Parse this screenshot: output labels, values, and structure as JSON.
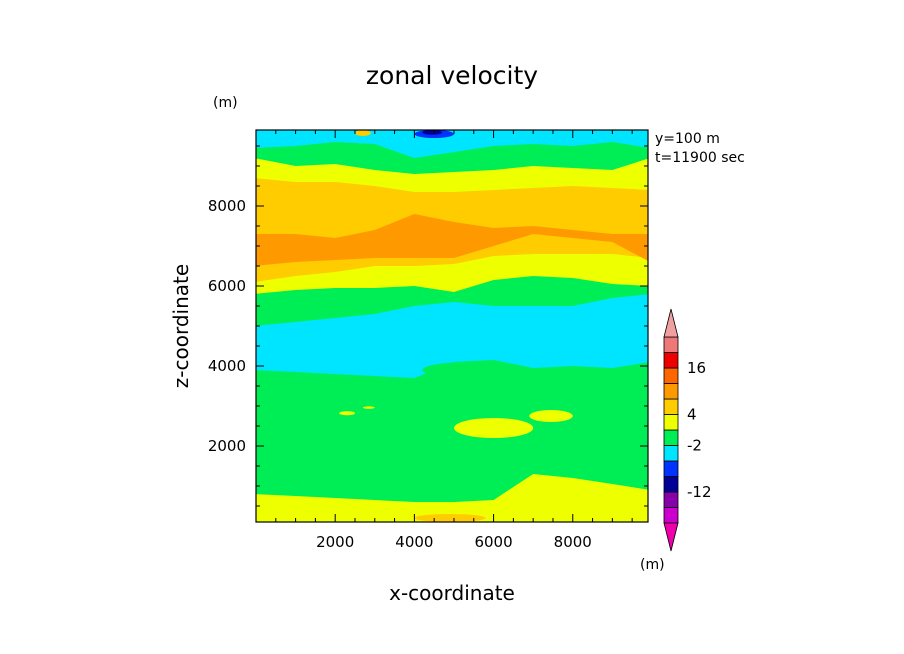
{
  "chart_data": {
    "type": "heatmap",
    "title": "zonal velocity",
    "xlabel": "x-coordinate",
    "ylabel": "z-coordinate",
    "y_unit": "(m)",
    "colorbar_unit": "(m)",
    "annotations": [
      "y=100 m",
      "t=11900 sec"
    ],
    "xlim": [
      0,
      9900
    ],
    "ylim": [
      100,
      9900
    ],
    "x_ticks": [
      2000,
      4000,
      6000,
      8000
    ],
    "y_ticks": [
      2000,
      4000,
      6000,
      8000
    ],
    "x_tick_labels": [
      "2000",
      "4000",
      "6000",
      "8000"
    ],
    "y_tick_labels": [
      "2000",
      "4000",
      "6000",
      "8000"
    ],
    "colorbar": {
      "bins": [
        {
          "color": "#cc00cc"
        },
        {
          "color": "#8800aa"
        },
        {
          "color": "#000099"
        },
        {
          "color": "#0033ff"
        },
        {
          "color": "#00e5ff"
        },
        {
          "color": "#00ee55"
        },
        {
          "color": "#eeff00"
        },
        {
          "color": "#ffcc00"
        },
        {
          "color": "#ff9900"
        },
        {
          "color": "#ff6600"
        },
        {
          "color": "#ee0000"
        },
        {
          "color": "#ee7777"
        }
      ],
      "bottom_arrow_color": "#ee00aa",
      "top_arrow_color": "#f0a0a0",
      "labels": [
        {
          "text": "16",
          "after_bin": 10
        },
        {
          "text": "4",
          "after_bin": 7
        },
        {
          "text": "-2",
          "after_bin": 5
        },
        {
          "text": "-12",
          "after_bin": 2
        }
      ]
    },
    "field": {
      "note": "contour bands from bottom (z=100) to top (z=9900); boundaries are z-values in m sampled at x",
      "x_samples": [
        0,
        1000,
        2000,
        3000,
        4000,
        5000,
        6000,
        7000,
        8000,
        9000,
        9900
      ],
      "layers": [
        {
          "color": "#eeff00",
          "from": "bottom"
        },
        {
          "color": "#00ee55",
          "lower": [
            800,
            750,
            700,
            650,
            600,
            600,
            650,
            1300,
            1200,
            1050,
            900
          ]
        },
        {
          "color": "#00e5ff",
          "lower": [
            3900,
            3850,
            3800,
            3750,
            3700,
            4100,
            4150,
            3950,
            4000,
            3950,
            4100
          ]
        },
        {
          "color": "#00ee55",
          "lower": [
            5000,
            5100,
            5200,
            5300,
            5500,
            5600,
            5500,
            5500,
            5500,
            5700,
            5800
          ]
        },
        {
          "color": "#eeff00",
          "lower": [
            5800,
            5900,
            5950,
            5950,
            6000,
            5850,
            6150,
            6250,
            6200,
            6050,
            6000
          ]
        },
        {
          "color": "#ffcc00",
          "lower": [
            6100,
            6250,
            6350,
            6500,
            6500,
            6550,
            6750,
            6800,
            6800,
            6800,
            6700
          ]
        },
        {
          "color": "#ff9900",
          "lower": [
            6500,
            6600,
            6650,
            6700,
            6700,
            6700,
            7000,
            7300,
            7200,
            7100,
            6600
          ]
        },
        {
          "color": "#ffcc00",
          "lower": [
            7300,
            7300,
            7200,
            7400,
            7800,
            7600,
            7450,
            7500,
            7400,
            7300,
            7300
          ]
        },
        {
          "color": "#eeff00",
          "lower": [
            8700,
            8600,
            8600,
            8500,
            8350,
            8350,
            8400,
            8450,
            8500,
            8450,
            8400
          ]
        },
        {
          "color": "#00ee55",
          "lower": [
            9200,
            9000,
            9050,
            8900,
            8800,
            8850,
            8900,
            9000,
            8950,
            8900,
            9200
          ]
        },
        {
          "color": "#00e5ff",
          "lower": [
            9450,
            9500,
            9600,
            9550,
            9200,
            9350,
            9500,
            9550,
            9500,
            9600,
            9450
          ]
        }
      ],
      "patches": [
        {
          "color": "#00ee55",
          "x": [
            2200,
            3000
          ],
          "z": [
            2500,
            3000
          ]
        },
        {
          "color": "#eeff00",
          "x": [
            2100,
            2500
          ],
          "z": [
            2770,
            2870
          ]
        },
        {
          "color": "#eeff00",
          "x": [
            2700,
            3000
          ],
          "z": [
            2930,
            2990
          ]
        },
        {
          "color": "#eeff00",
          "x": [
            5000,
            7000
          ],
          "z": [
            2200,
            2700
          ]
        },
        {
          "color": "#eeff00",
          "x": [
            6900,
            8000
          ],
          "z": [
            2600,
            2900
          ]
        },
        {
          "color": "#00ee55",
          "x": [
            2100,
            2700
          ],
          "z": [
            5500,
            5700
          ]
        },
        {
          "color": "#00ee55",
          "x": [
            4200,
            6500
          ],
          "z": [
            3700,
            4100
          ]
        },
        {
          "color": "#0033ff",
          "x": [
            4000,
            5000
          ],
          "z": [
            9700,
            9900
          ]
        },
        {
          "color": "#000099",
          "x": [
            4200,
            4700
          ],
          "z": [
            9780,
            9900
          ]
        },
        {
          "color": "#ffcc00",
          "x": [
            2500,
            2900
          ],
          "z": [
            9750,
            9900
          ]
        },
        {
          "color": "#ffcc00",
          "x": [
            4000,
            5800
          ],
          "z": [
            100,
            300
          ]
        },
        {
          "color": "#00e5ff",
          "x": [
            8400,
            8900
          ],
          "z": [
            4650,
            4800
          ]
        }
      ]
    }
  }
}
